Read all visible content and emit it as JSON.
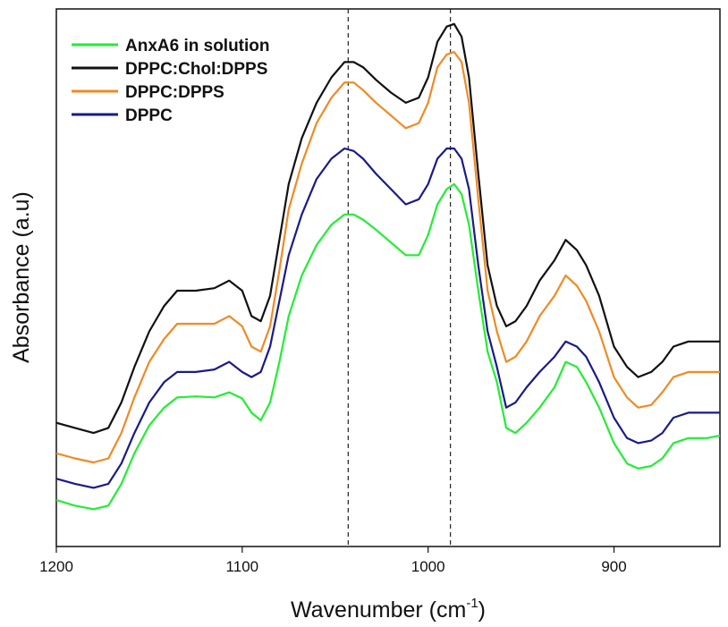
{
  "chart_data": {
    "type": "line",
    "title": "",
    "xlabel": "Wavenumber (cm",
    "xlabel_sup": "-1",
    "xlabel_close": ")",
    "ylabel": "Absorbance (a.u)",
    "xlim": [
      1200,
      843
    ],
    "ylim": [
      0,
      1
    ],
    "x_reversed": true,
    "x_ticks": [
      1200,
      1100,
      1000,
      900
    ],
    "x_tick_labels": [
      "1200",
      "1100",
      "1000",
      "900"
    ],
    "y_ticks_shown": false,
    "grid": false,
    "legend_position": "top-left",
    "reference_lines": [
      1043,
      988
    ],
    "series": [
      {
        "name": "AnxA6 in solution",
        "color": "#22ee33",
        "points": [
          [
            1200,
            0.058
          ],
          [
            1190,
            0.047
          ],
          [
            1180,
            0.04
          ],
          [
            1172,
            0.047
          ],
          [
            1165,
            0.09
          ],
          [
            1158,
            0.15
          ],
          [
            1150,
            0.205
          ],
          [
            1142,
            0.24
          ],
          [
            1135,
            0.26
          ],
          [
            1125,
            0.262
          ],
          [
            1115,
            0.26
          ],
          [
            1107,
            0.27
          ],
          [
            1100,
            0.258
          ],
          [
            1095,
            0.23
          ],
          [
            1090,
            0.215
          ],
          [
            1085,
            0.25
          ],
          [
            1080,
            0.33
          ],
          [
            1075,
            0.42
          ],
          [
            1068,
            0.5
          ],
          [
            1060,
            0.56
          ],
          [
            1052,
            0.6
          ],
          [
            1045,
            0.62
          ],
          [
            1040,
            0.62
          ],
          [
            1035,
            0.61
          ],
          [
            1028,
            0.59
          ],
          [
            1020,
            0.565
          ],
          [
            1012,
            0.54
          ],
          [
            1005,
            0.54
          ],
          [
            1000,
            0.58
          ],
          [
            995,
            0.64
          ],
          [
            990,
            0.67
          ],
          [
            986,
            0.68
          ],
          [
            982,
            0.66
          ],
          [
            978,
            0.6
          ],
          [
            973,
            0.47
          ],
          [
            968,
            0.35
          ],
          [
            963,
            0.29
          ],
          [
            958,
            0.2
          ],
          [
            953,
            0.19
          ],
          [
            947,
            0.21
          ],
          [
            940,
            0.24
          ],
          [
            932,
            0.28
          ],
          [
            926,
            0.33
          ],
          [
            920,
            0.32
          ],
          [
            915,
            0.29
          ],
          [
            908,
            0.24
          ],
          [
            900,
            0.17
          ],
          [
            893,
            0.13
          ],
          [
            887,
            0.12
          ],
          [
            880,
            0.125
          ],
          [
            874,
            0.14
          ],
          [
            868,
            0.17
          ],
          [
            860,
            0.18
          ],
          [
            850,
            0.18
          ],
          [
            843,
            0.185
          ]
        ]
      },
      {
        "name": "DPPC:Chol:DPPS",
        "color": "#111111",
        "points": [
          [
            1200,
            0.21
          ],
          [
            1190,
            0.2
          ],
          [
            1180,
            0.19
          ],
          [
            1172,
            0.2
          ],
          [
            1165,
            0.25
          ],
          [
            1158,
            0.32
          ],
          [
            1150,
            0.39
          ],
          [
            1142,
            0.44
          ],
          [
            1135,
            0.47
          ],
          [
            1125,
            0.47
          ],
          [
            1115,
            0.475
          ],
          [
            1107,
            0.49
          ],
          [
            1100,
            0.47
          ],
          [
            1095,
            0.42
          ],
          [
            1090,
            0.41
          ],
          [
            1085,
            0.46
          ],
          [
            1080,
            0.57
          ],
          [
            1075,
            0.68
          ],
          [
            1068,
            0.77
          ],
          [
            1060,
            0.84
          ],
          [
            1052,
            0.89
          ],
          [
            1045,
            0.92
          ],
          [
            1040,
            0.92
          ],
          [
            1035,
            0.91
          ],
          [
            1028,
            0.885
          ],
          [
            1020,
            0.86
          ],
          [
            1012,
            0.84
          ],
          [
            1005,
            0.85
          ],
          [
            1000,
            0.89
          ],
          [
            995,
            0.96
          ],
          [
            990,
            0.99
          ],
          [
            986,
            0.995
          ],
          [
            982,
            0.97
          ],
          [
            978,
            0.89
          ],
          [
            973,
            0.7
          ],
          [
            968,
            0.52
          ],
          [
            963,
            0.44
          ],
          [
            958,
            0.4
          ],
          [
            953,
            0.41
          ],
          [
            947,
            0.44
          ],
          [
            940,
            0.49
          ],
          [
            932,
            0.53
          ],
          [
            926,
            0.57
          ],
          [
            920,
            0.55
          ],
          [
            915,
            0.52
          ],
          [
            908,
            0.46
          ],
          [
            900,
            0.36
          ],
          [
            893,
            0.32
          ],
          [
            887,
            0.3
          ],
          [
            880,
            0.31
          ],
          [
            874,
            0.33
          ],
          [
            868,
            0.36
          ],
          [
            860,
            0.37
          ],
          [
            850,
            0.37
          ],
          [
            843,
            0.37
          ]
        ]
      },
      {
        "name": "DPPC:DPPS",
        "color": "#f08a24",
        "points": [
          [
            1200,
            0.15
          ],
          [
            1190,
            0.14
          ],
          [
            1180,
            0.132
          ],
          [
            1172,
            0.14
          ],
          [
            1165,
            0.19
          ],
          [
            1158,
            0.26
          ],
          [
            1150,
            0.33
          ],
          [
            1142,
            0.375
          ],
          [
            1135,
            0.405
          ],
          [
            1125,
            0.405
          ],
          [
            1115,
            0.405
          ],
          [
            1107,
            0.42
          ],
          [
            1100,
            0.4
          ],
          [
            1095,
            0.36
          ],
          [
            1090,
            0.35
          ],
          [
            1085,
            0.4
          ],
          [
            1080,
            0.51
          ],
          [
            1075,
            0.63
          ],
          [
            1068,
            0.72
          ],
          [
            1060,
            0.8
          ],
          [
            1052,
            0.85
          ],
          [
            1045,
            0.88
          ],
          [
            1040,
            0.88
          ],
          [
            1035,
            0.865
          ],
          [
            1028,
            0.84
          ],
          [
            1020,
            0.815
          ],
          [
            1012,
            0.79
          ],
          [
            1005,
            0.8
          ],
          [
            1000,
            0.84
          ],
          [
            995,
            0.91
          ],
          [
            990,
            0.935
          ],
          [
            986,
            0.94
          ],
          [
            982,
            0.92
          ],
          [
            978,
            0.84
          ],
          [
            973,
            0.65
          ],
          [
            968,
            0.47
          ],
          [
            963,
            0.39
          ],
          [
            958,
            0.33
          ],
          [
            953,
            0.34
          ],
          [
            947,
            0.37
          ],
          [
            940,
            0.42
          ],
          [
            932,
            0.46
          ],
          [
            926,
            0.5
          ],
          [
            920,
            0.48
          ],
          [
            915,
            0.45
          ],
          [
            908,
            0.39
          ],
          [
            900,
            0.3
          ],
          [
            893,
            0.26
          ],
          [
            887,
            0.24
          ],
          [
            880,
            0.245
          ],
          [
            874,
            0.27
          ],
          [
            868,
            0.3
          ],
          [
            860,
            0.31
          ],
          [
            850,
            0.31
          ],
          [
            843,
            0.31
          ]
        ]
      },
      {
        "name": "DPPC",
        "color": "#1a1a8a",
        "points": [
          [
            1200,
            0.1
          ],
          [
            1190,
            0.09
          ],
          [
            1180,
            0.082
          ],
          [
            1172,
            0.09
          ],
          [
            1165,
            0.13
          ],
          [
            1158,
            0.19
          ],
          [
            1150,
            0.25
          ],
          [
            1142,
            0.29
          ],
          [
            1135,
            0.31
          ],
          [
            1125,
            0.31
          ],
          [
            1115,
            0.315
          ],
          [
            1107,
            0.33
          ],
          [
            1100,
            0.31
          ],
          [
            1095,
            0.3
          ],
          [
            1090,
            0.31
          ],
          [
            1085,
            0.36
          ],
          [
            1080,
            0.45
          ],
          [
            1075,
            0.54
          ],
          [
            1068,
            0.62
          ],
          [
            1060,
            0.69
          ],
          [
            1052,
            0.73
          ],
          [
            1045,
            0.75
          ],
          [
            1040,
            0.745
          ],
          [
            1035,
            0.73
          ],
          [
            1028,
            0.7
          ],
          [
            1020,
            0.67
          ],
          [
            1012,
            0.64
          ],
          [
            1005,
            0.65
          ],
          [
            1000,
            0.68
          ],
          [
            995,
            0.73
          ],
          [
            990,
            0.75
          ],
          [
            986,
            0.75
          ],
          [
            982,
            0.73
          ],
          [
            978,
            0.67
          ],
          [
            973,
            0.52
          ],
          [
            968,
            0.39
          ],
          [
            963,
            0.32
          ],
          [
            958,
            0.24
          ],
          [
            953,
            0.25
          ],
          [
            947,
            0.28
          ],
          [
            940,
            0.31
          ],
          [
            932,
            0.34
          ],
          [
            926,
            0.37
          ],
          [
            920,
            0.36
          ],
          [
            915,
            0.34
          ],
          [
            908,
            0.29
          ],
          [
            900,
            0.22
          ],
          [
            893,
            0.18
          ],
          [
            887,
            0.17
          ],
          [
            880,
            0.175
          ],
          [
            874,
            0.19
          ],
          [
            868,
            0.22
          ],
          [
            860,
            0.23
          ],
          [
            850,
            0.23
          ],
          [
            843,
            0.23
          ]
        ]
      }
    ]
  }
}
